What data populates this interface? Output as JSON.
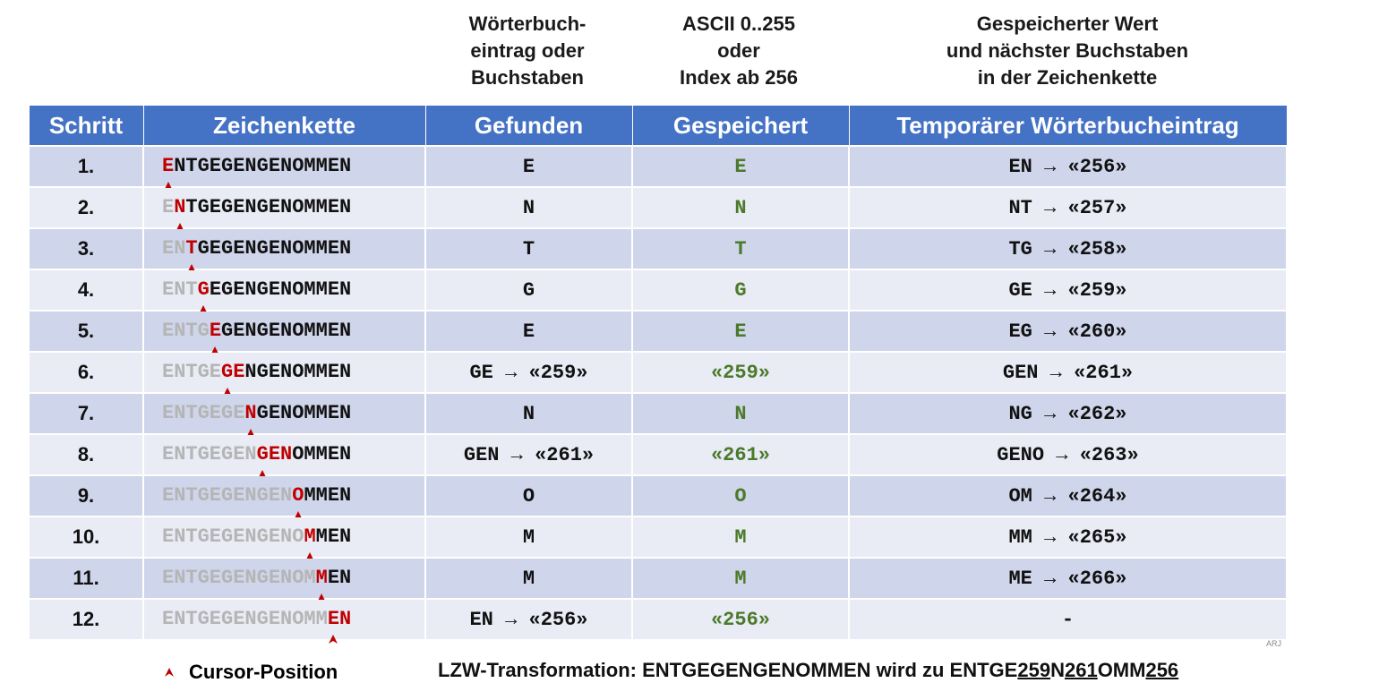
{
  "sub_headers": {
    "found": "Wörterbuch-\neintrag oder\nBuchstaben",
    "stored": "ASCII 0..255\noder\nIndex ab 256",
    "temp": "Gespeicherter Wert\nund nächster Buchstaben\nin der Zeichenkette"
  },
  "headers": {
    "step": "Schritt",
    "chain": "Zeichenkette",
    "found": "Gefunden",
    "stored": "Gespeichert",
    "temp": "Temporärer Wörterbucheintrag"
  },
  "word": "ENTGEGENGENOMMEN",
  "rows": [
    {
      "step": "1.",
      "done": "",
      "hit": "E",
      "rest": "NTGEGENGENOMMEN",
      "found": "E",
      "stored": "E",
      "temp": "EN → «256»"
    },
    {
      "step": "2.",
      "done": "E",
      "hit": "N",
      "rest": "TGEGENGENOMMEN",
      "found": "N",
      "stored": "N",
      "temp": "NT → «257»"
    },
    {
      "step": "3.",
      "done": "EN",
      "hit": "T",
      "rest": "GEGENGENOMMEN",
      "found": "T",
      "stored": "T",
      "temp": "TG → «258»"
    },
    {
      "step": "4.",
      "done": "ENT",
      "hit": "G",
      "rest": "EGENGENOMMEN",
      "found": "G",
      "stored": "G",
      "temp": "GE → «259»"
    },
    {
      "step": "5.",
      "done": "ENTG",
      "hit": "E",
      "rest": "GENGENOMMEN",
      "found": "E",
      "stored": "E",
      "temp": "EG → «260»"
    },
    {
      "step": "6.",
      "done": "ENTGE",
      "hit": "GE",
      "rest": "NGENOMMEN",
      "found": "GE → «259»",
      "stored": "«259»",
      "temp": "GEN → «261»"
    },
    {
      "step": "7.",
      "done": "ENTGEGE",
      "hit": "N",
      "rest": "GENOMMEN",
      "found": "N",
      "stored": "N",
      "temp": "NG → «262»"
    },
    {
      "step": "8.",
      "done": "ENTGEGEN",
      "hit": "GEN",
      "rest": "OMMEN",
      "found": "GEN → «261»",
      "stored": "«261»",
      "temp": "GENO → «263»"
    },
    {
      "step": "9.",
      "done": "ENTGEGENGEN",
      "hit": "O",
      "rest": "MMEN",
      "found": "O",
      "stored": "O",
      "temp": "OM → «264»"
    },
    {
      "step": "10.",
      "done": "ENTGEGENGENO",
      "hit": "M",
      "rest": "MEN",
      "found": "M",
      "stored": "M",
      "temp": "MM → «265»"
    },
    {
      "step": "11.",
      "done": "ENTGEGENGENOM",
      "hit": "M",
      "rest": "EN",
      "found": "M",
      "stored": "M",
      "temp": "ME → «266»"
    },
    {
      "step": "12.",
      "done": "ENTGEGENGENOMM",
      "hit": "EN",
      "rest": "",
      "found": "EN → «256»",
      "stored": "«256»",
      "temp": "-"
    }
  ],
  "legend": {
    "cursor_label": "Cursor-Position",
    "cursor_icon": "cursor-caret-icon"
  },
  "footer": {
    "prefix": "LZW-Transformation: ENTGEGENGENOMMEN wird zu ENTGE",
    "u1": "259",
    "mid1": "N",
    "u2": "261",
    "mid2": "OMM",
    "u3": "256"
  },
  "credit": "ARJ",
  "colors": {
    "header_bg": "#4472c4",
    "row_odd": "#cfd5ea",
    "row_even": "#e9ebf5",
    "hit": "#c00000",
    "done": "#b5b5b5",
    "stored": "#4a7a2a"
  }
}
